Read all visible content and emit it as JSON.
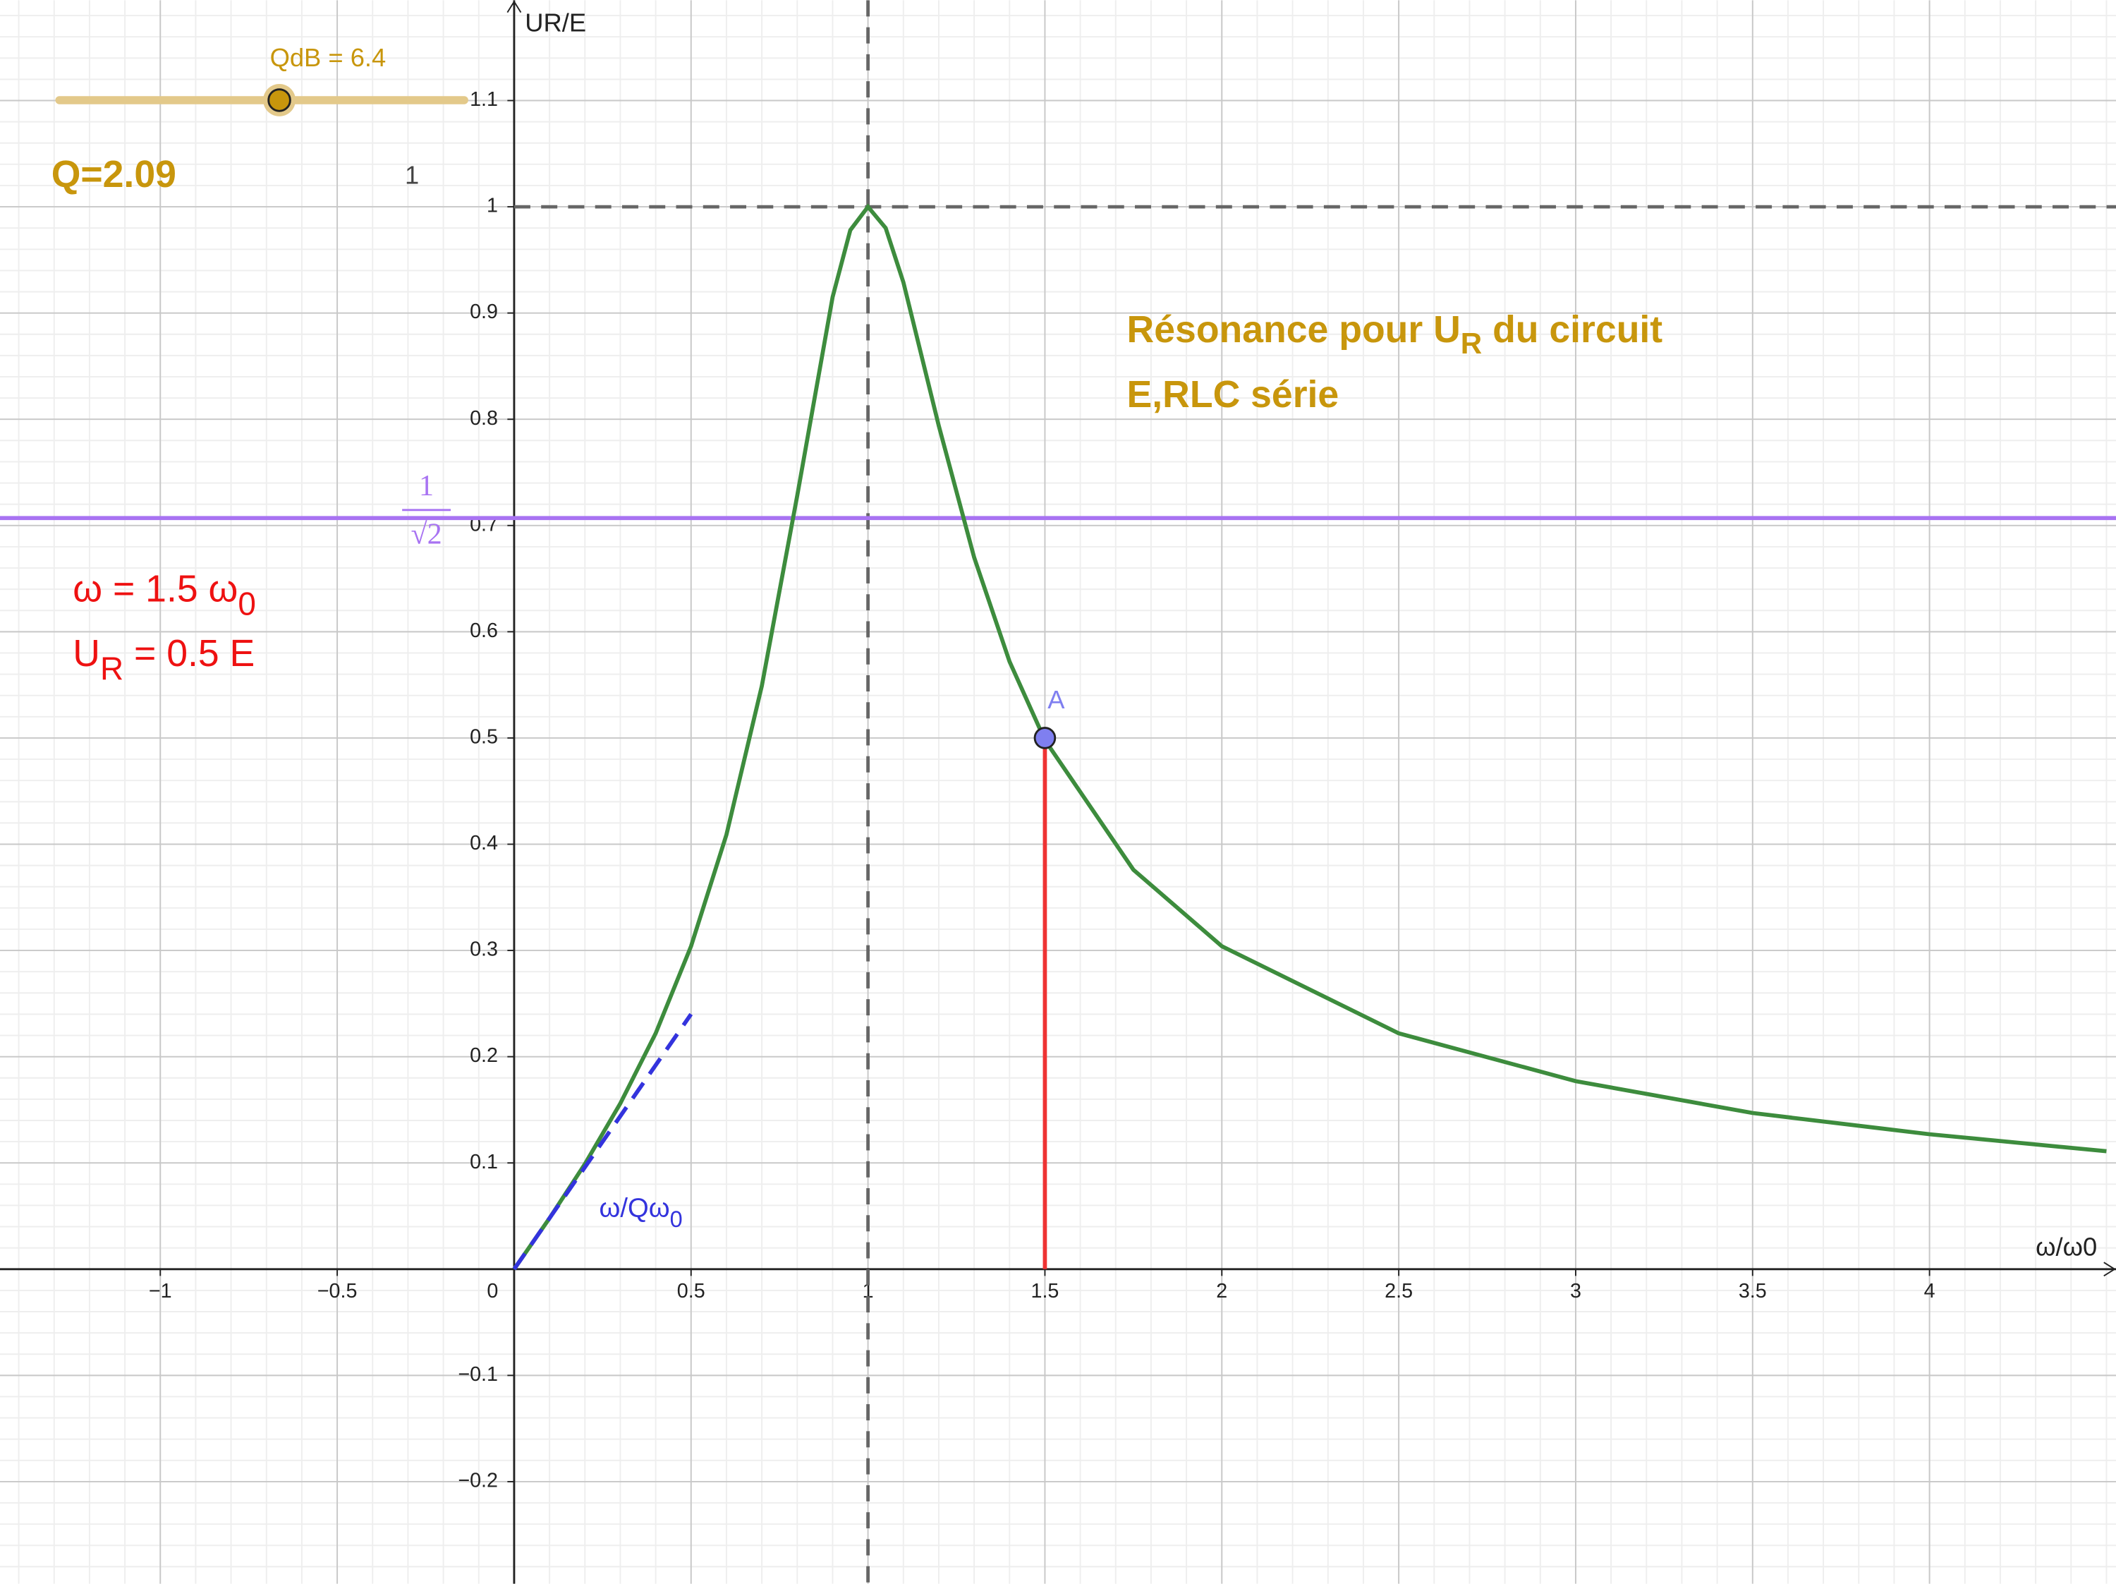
{
  "chart_data": {
    "type": "line",
    "x_label": "ω/ω0",
    "y_label": "UR/E",
    "xlim": [
      -1.453,
      4.527
    ],
    "ylim": [
      -0.2961,
      1.1944
    ],
    "xticks": [
      {
        "value": -1,
        "label": "−1"
      },
      {
        "value": -0.5,
        "label": "−0.5"
      },
      0,
      0.5,
      1,
      1.5,
      2,
      2.5,
      3,
      3.5,
      4
    ],
    "yticks": [
      {
        "value": -0.2,
        "label": "−0.2"
      },
      {
        "value": -0.1,
        "label": "−0.1"
      },
      0.1,
      0.2,
      0.3,
      0.4,
      0.5,
      0.6,
      0.7,
      0.8,
      0.9,
      1,
      1.1
    ],
    "grid": true,
    "x": [
      0,
      0.05,
      0.1,
      0.2,
      0.3,
      0.4,
      0.5,
      0.6,
      0.7,
      0.8,
      0.9,
      0.95,
      1,
      1.05,
      1.1,
      1.2,
      1.3,
      1.4,
      1.5,
      1.75,
      2,
      2.5,
      3,
      3.5,
      4,
      4.5
    ],
    "series": [
      {
        "color": "#3d8c3d",
        "values": [
          0,
          0.024,
          0.048,
          0.099,
          0.156,
          0.222,
          0.304,
          0.409,
          0.549,
          0.728,
          0.915,
          0.978,
          1,
          0.98,
          0.929,
          0.794,
          0.67,
          0.572,
          0.498,
          0.376,
          0.304,
          0.222,
          0.177,
          0.147,
          0.127,
          0.111
        ]
      }
    ],
    "tangent": {
      "color": "#3333dd",
      "x": [
        0,
        0.5
      ],
      "values": [
        0,
        0.24
      ],
      "label": "ω/Qω",
      "label_sub": "0"
    },
    "reference_lines": [
      {
        "axis": "x",
        "value": 1,
        "color": "#666666",
        "dashed": true
      },
      {
        "axis": "y",
        "value": 1,
        "color": "#666666",
        "dashed": true
      },
      {
        "axis": "y",
        "value": 0.707,
        "color": "#a873f2",
        "dashed": false,
        "label_num": "1",
        "label_den": "√2"
      }
    ],
    "point": {
      "name": "A",
      "x": 1.5,
      "y": 0.5,
      "color": "#7f7ff0",
      "drop_color": "#ee3333"
    },
    "title": {
      "text": "Résonance pour U",
      "sub": "R",
      "rest": " du circuit",
      "line2": "E,RLC série"
    },
    "slider_label": "QdB = 6.4",
    "q_text": "Q=2.09",
    "stray_label": "1",
    "omega_text": {
      "text": "ω = 1.5 ω",
      "sub": "0"
    },
    "ur_text": {
      "text": "U",
      "sub": "R",
      "rest": " = 0.5 E"
    }
  }
}
